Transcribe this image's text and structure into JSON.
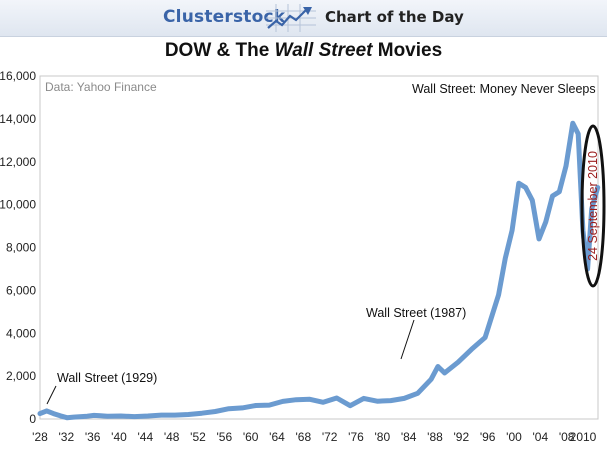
{
  "header": {
    "brand": "Clusterstock",
    "tagline": "Chart of the Day"
  },
  "title_parts": {
    "before": "DOW & The ",
    "italic": "Wall Street",
    "after": " Movies"
  },
  "colors": {
    "line": "#6b9bd0",
    "brand": "#3a64a8",
    "ellipse_text": "#9b1c1c"
  },
  "chart_data": {
    "type": "line",
    "title": "DOW & The Wall Street Movies",
    "source_note": "Data: Yahoo Finance",
    "xlim": [
      1928,
      2010
    ],
    "ylim": [
      0,
      16000
    ],
    "x_tick_labels": [
      "'28",
      "'32",
      "'36",
      "'40",
      "'44",
      "'48",
      "'52",
      "'56",
      "'60",
      "'64",
      "'68",
      "'72",
      "'76",
      "'80",
      "'84",
      "'88",
      "'92",
      "'96",
      "'00",
      "'04",
      "'08",
      "2010"
    ],
    "y_tick_labels": [
      "0",
      "2,000",
      "4,000",
      "6,000",
      "8,000",
      "10,000",
      "12,000",
      "14,000",
      "16,000"
    ],
    "grid": false,
    "series": [
      {
        "points": [
          [
            1928,
            250
          ],
          [
            1929,
            380
          ],
          [
            1930,
            250
          ],
          [
            1931,
            150
          ],
          [
            1932,
            60
          ],
          [
            1933,
            90
          ],
          [
            1935,
            130
          ],
          [
            1936,
            170
          ],
          [
            1937,
            150
          ],
          [
            1938,
            130
          ],
          [
            1940,
            140
          ],
          [
            1942,
            110
          ],
          [
            1944,
            140
          ],
          [
            1946,
            180
          ],
          [
            1948,
            180
          ],
          [
            1950,
            210
          ],
          [
            1952,
            270
          ],
          [
            1954,
            350
          ],
          [
            1956,
            480
          ],
          [
            1958,
            520
          ],
          [
            1960,
            630
          ],
          [
            1962,
            650
          ],
          [
            1964,
            820
          ],
          [
            1966,
            900
          ],
          [
            1968,
            920
          ],
          [
            1970,
            780
          ],
          [
            1972,
            980
          ],
          [
            1974,
            620
          ],
          [
            1976,
            960
          ],
          [
            1978,
            830
          ],
          [
            1980,
            860
          ],
          [
            1982,
            960
          ],
          [
            1984,
            1200
          ],
          [
            1986,
            1850
          ],
          [
            1987,
            2450
          ],
          [
            1988,
            2150
          ],
          [
            1990,
            2650
          ],
          [
            1992,
            3250
          ],
          [
            1994,
            3800
          ],
          [
            1996,
            5800
          ],
          [
            1997,
            7500
          ],
          [
            1998,
            8800
          ],
          [
            1999,
            11000
          ],
          [
            2000,
            10800
          ],
          [
            2001,
            10200
          ],
          [
            2002,
            8400
          ],
          [
            2003,
            9200
          ],
          [
            2004,
            10400
          ],
          [
            2005,
            10600
          ],
          [
            2006,
            11800
          ],
          [
            2007,
            13800
          ],
          [
            2007.8,
            13300
          ],
          [
            2008.5,
            8800
          ],
          [
            2009.2,
            7000
          ],
          [
            2009.8,
            9800
          ],
          [
            2010.7,
            10800
          ]
        ]
      }
    ],
    "annotations": [
      {
        "text": "Wall Street (1929)",
        "x": 1929
      },
      {
        "text": "Wall Street (1987)",
        "x": 1987
      },
      {
        "text": "Wall Street: Money Never Sleeps",
        "x": 2010
      },
      {
        "text": "24 September 2010",
        "x": 2010
      }
    ]
  }
}
